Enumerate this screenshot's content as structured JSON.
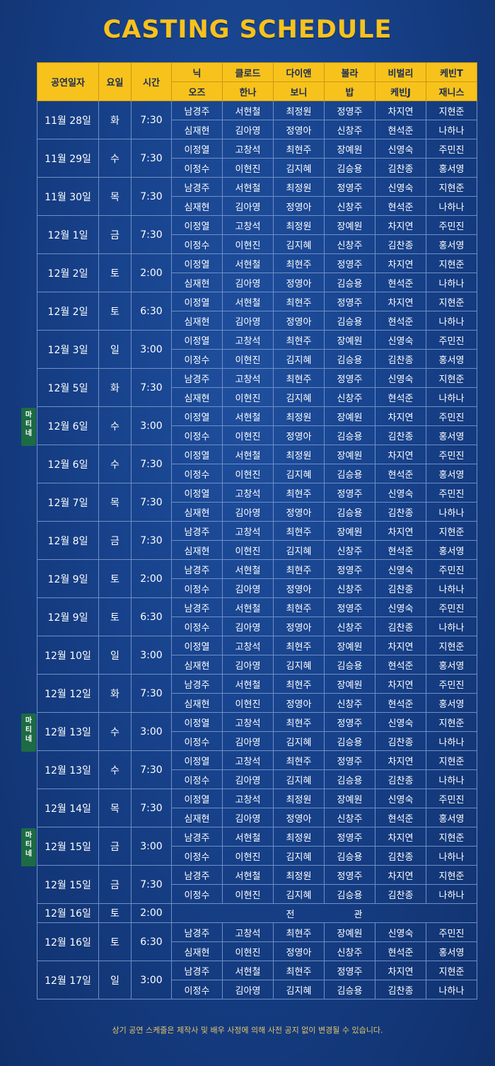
{
  "title": "CASTING SCHEDULE",
  "header": {
    "date": "공연일자",
    "day": "요일",
    "time": "시간",
    "roles_row1": [
      "닉",
      "클로드",
      "다이앤",
      "볼라",
      "비벌리",
      "케빈T"
    ],
    "roles_row2": [
      "오즈",
      "한나",
      "보니",
      "밥",
      "케빈J",
      "재니스"
    ]
  },
  "matinee_label": "마티네",
  "notice": "상기 공연 스케줄은 제작사 및 배우 사정에 의해 사전 공지 없이 변경될 수 있습니다.",
  "closed_label": [
    "전",
    "관"
  ],
  "performances": [
    {
      "date": "11월 28일",
      "day": "화",
      "time": "7:30",
      "type": "weekday",
      "cast1": [
        "남경주",
        "서현철",
        "최정원",
        "정영주",
        "차지연",
        "지현준"
      ],
      "cast2": [
        "심재현",
        "김아영",
        "정영아",
        "신창주",
        "현석준",
        "나하나"
      ]
    },
    {
      "date": "11월 29일",
      "day": "수",
      "time": "7:30",
      "type": "weekday",
      "cast1": [
        "이정열",
        "고창석",
        "최현주",
        "장예원",
        "신영숙",
        "주민진"
      ],
      "cast2": [
        "이정수",
        "이현진",
        "김지혜",
        "김승용",
        "김찬종",
        "홍서영"
      ]
    },
    {
      "date": "11월 30일",
      "day": "목",
      "time": "7:30",
      "type": "weekday",
      "cast1": [
        "남경주",
        "서현철",
        "최정원",
        "정영주",
        "신영숙",
        "지현준"
      ],
      "cast2": [
        "심재현",
        "김아영",
        "정영아",
        "신창주",
        "현석준",
        "나하나"
      ]
    },
    {
      "date": "12월 1일",
      "day": "금",
      "time": "7:30",
      "type": "weekday",
      "cast1": [
        "이정열",
        "고창석",
        "최정원",
        "장예원",
        "차지연",
        "주민진"
      ],
      "cast2": [
        "이정수",
        "이현진",
        "김지혜",
        "신창주",
        "김찬종",
        "홍서영"
      ]
    },
    {
      "date": "12월 2일",
      "day": "토",
      "time": "2:00",
      "type": "sat",
      "cast1": [
        "이정열",
        "서현철",
        "최현주",
        "정영주",
        "차지연",
        "지현준"
      ],
      "cast2": [
        "심재현",
        "김아영",
        "정영아",
        "김승용",
        "현석준",
        "나하나"
      ]
    },
    {
      "date": "12월 2일",
      "day": "토",
      "time": "6:30",
      "type": "sat",
      "cast1": [
        "이정열",
        "서현철",
        "최현주",
        "정영주",
        "차지연",
        "지현준"
      ],
      "cast2": [
        "심재현",
        "김아영",
        "정영아",
        "김승용",
        "현석준",
        "나하나"
      ]
    },
    {
      "date": "12월 3일",
      "day": "일",
      "time": "3:00",
      "type": "sun",
      "cast1": [
        "이정열",
        "고창석",
        "최현주",
        "장예원",
        "신영숙",
        "주민진"
      ],
      "cast2": [
        "이정수",
        "이현진",
        "김지혜",
        "김승용",
        "김찬종",
        "홍서영"
      ]
    },
    {
      "date": "12월 5일",
      "day": "화",
      "time": "7:30",
      "type": "weekday",
      "cast1": [
        "남경주",
        "고창석",
        "최현주",
        "정영주",
        "신영숙",
        "지현준"
      ],
      "cast2": [
        "심재현",
        "이현진",
        "김지혜",
        "신창주",
        "현석준",
        "나하나"
      ]
    },
    {
      "date": "12월 6일",
      "day": "수",
      "time": "3:00",
      "type": "weekday",
      "matinee": true,
      "cast1": [
        "이정열",
        "서현철",
        "최정원",
        "장예원",
        "차지연",
        "주민진"
      ],
      "cast2": [
        "이정수",
        "이현진",
        "정영아",
        "김승용",
        "김찬종",
        "홍서영"
      ]
    },
    {
      "date": "12월 6일",
      "day": "수",
      "time": "7:30",
      "type": "weekday",
      "cast1": [
        "이정열",
        "서현철",
        "최정원",
        "장예원",
        "차지연",
        "주민진"
      ],
      "cast2": [
        "이정수",
        "이현진",
        "김지혜",
        "김승용",
        "현석준",
        "홍서영"
      ]
    },
    {
      "date": "12월 7일",
      "day": "목",
      "time": "7:30",
      "type": "weekday",
      "cast1": [
        "이정열",
        "고창석",
        "최현주",
        "정영주",
        "신영숙",
        "주민진"
      ],
      "cast2": [
        "심재현",
        "김아영",
        "정영아",
        "김승용",
        "김찬종",
        "나하나"
      ]
    },
    {
      "date": "12월 8일",
      "day": "금",
      "time": "7:30",
      "type": "weekday",
      "cast1": [
        "남경주",
        "고창석",
        "최현주",
        "장예원",
        "차지연",
        "지현준"
      ],
      "cast2": [
        "심재현",
        "이현진",
        "김지혜",
        "신창주",
        "현석준",
        "홍서영"
      ]
    },
    {
      "date": "12월 9일",
      "day": "토",
      "time": "2:00",
      "type": "sat",
      "cast1": [
        "남경주",
        "서현철",
        "최현주",
        "정영주",
        "신영숙",
        "주민진"
      ],
      "cast2": [
        "이정수",
        "김아영",
        "정영아",
        "신창주",
        "김찬종",
        "나하나"
      ]
    },
    {
      "date": "12월 9일",
      "day": "토",
      "time": "6:30",
      "type": "sat",
      "cast1": [
        "남경주",
        "서현철",
        "최현주",
        "정영주",
        "신영숙",
        "주민진"
      ],
      "cast2": [
        "이정수",
        "김아영",
        "정영아",
        "신창주",
        "김찬종",
        "나하나"
      ]
    },
    {
      "date": "12월 10일",
      "day": "일",
      "time": "3:00",
      "type": "sun",
      "cast1": [
        "이정열",
        "고창석",
        "최현주",
        "장예원",
        "차지연",
        "지현준"
      ],
      "cast2": [
        "심재현",
        "김아영",
        "김지혜",
        "김승용",
        "현석준",
        "홍서영"
      ]
    },
    {
      "date": "12월 12일",
      "day": "화",
      "time": "7:30",
      "type": "weekday",
      "cast1": [
        "남경주",
        "서현철",
        "최현주",
        "장예원",
        "차지연",
        "주민진"
      ],
      "cast2": [
        "심재현",
        "이현진",
        "정영아",
        "신창주",
        "현석준",
        "홍서영"
      ]
    },
    {
      "date": "12월 13일",
      "day": "수",
      "time": "3:00",
      "type": "weekday",
      "matinee": true,
      "cast1": [
        "이정열",
        "고창석",
        "최현주",
        "정영주",
        "신영숙",
        "지현준"
      ],
      "cast2": [
        "이정수",
        "김아영",
        "김지혜",
        "김승용",
        "김찬종",
        "나하나"
      ]
    },
    {
      "date": "12월 13일",
      "day": "수",
      "time": "7:30",
      "type": "weekday",
      "cast1": [
        "이정열",
        "고창석",
        "최현주",
        "정영주",
        "차지연",
        "지현준"
      ],
      "cast2": [
        "이정수",
        "김아영",
        "김지혜",
        "김승용",
        "김찬종",
        "나하나"
      ]
    },
    {
      "date": "12월 14일",
      "day": "목",
      "time": "7:30",
      "type": "weekday",
      "cast1": [
        "이정열",
        "고창석",
        "최정원",
        "장예원",
        "신영숙",
        "주민진"
      ],
      "cast2": [
        "심재현",
        "김아영",
        "정영아",
        "신창주",
        "현석준",
        "홍서영"
      ]
    },
    {
      "date": "12월 15일",
      "day": "금",
      "time": "3:00",
      "type": "weekday",
      "matinee": true,
      "cast1": [
        "남경주",
        "서현철",
        "최정원",
        "정영주",
        "차지연",
        "지현준"
      ],
      "cast2": [
        "이정수",
        "이현진",
        "김지혜",
        "김승용",
        "김찬종",
        "나하나"
      ]
    },
    {
      "date": "12월 15일",
      "day": "금",
      "time": "7:30",
      "type": "weekday",
      "cast1": [
        "남경주",
        "서현철",
        "최정원",
        "정영주",
        "차지연",
        "지현준"
      ],
      "cast2": [
        "이정수",
        "이현진",
        "김지혜",
        "김승용",
        "김찬종",
        "나하나"
      ]
    },
    {
      "date": "12월 16일",
      "day": "토",
      "time": "2:00",
      "type": "sat",
      "closed": true
    },
    {
      "date": "12월 16일",
      "day": "토",
      "time": "6:30",
      "type": "sat",
      "cast1": [
        "남경주",
        "고창석",
        "최현주",
        "장예원",
        "신영숙",
        "주민진"
      ],
      "cast2": [
        "심재현",
        "이현진",
        "정영아",
        "신창주",
        "현석준",
        "홍서영"
      ]
    },
    {
      "date": "12월 17일",
      "day": "일",
      "time": "3:00",
      "type": "sun",
      "cast1": [
        "남경주",
        "서현철",
        "최현주",
        "정영주",
        "차지연",
        "지현준"
      ],
      "cast2": [
        "이정수",
        "김아영",
        "김지혜",
        "김승용",
        "김찬종",
        "나하나"
      ]
    }
  ]
}
